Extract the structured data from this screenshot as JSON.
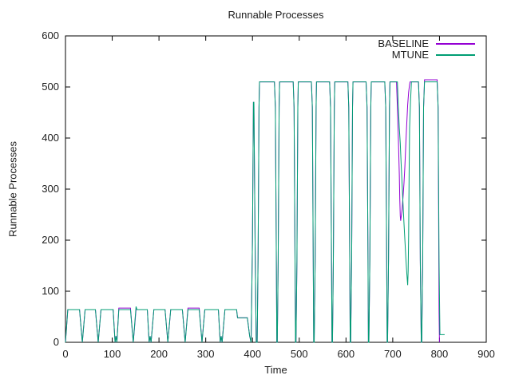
{
  "chart_data": {
    "type": "line",
    "title": "Runnable Processes",
    "xlabel": "Time",
    "ylabel": "Runnable Processes",
    "xlim": [
      0,
      900
    ],
    "ylim": [
      0,
      600
    ],
    "xticks": [
      0,
      100,
      200,
      300,
      400,
      500,
      600,
      700,
      800,
      900
    ],
    "yticks": [
      0,
      100,
      200,
      300,
      400,
      500,
      600
    ],
    "grid": false,
    "legend_position": "top-right-inside",
    "background_color": "#ffffff",
    "border_color": "#000000",
    "text_color": "#1c1c1c",
    "series": [
      {
        "name": "BASELINE",
        "color": "#9400d3",
        "points": [
          [
            0,
            0
          ],
          [
            5,
            64
          ],
          [
            30,
            64
          ],
          [
            36,
            0
          ],
          [
            42,
            64
          ],
          [
            64,
            64
          ],
          [
            70,
            0
          ],
          [
            76,
            64
          ],
          [
            102,
            64
          ],
          [
            106,
            0
          ],
          [
            108,
            12
          ],
          [
            110,
            0
          ],
          [
            114,
            67
          ],
          [
            139,
            67
          ],
          [
            145,
            0
          ],
          [
            151,
            64
          ],
          [
            175,
            64
          ],
          [
            179,
            0
          ],
          [
            181,
            12
          ],
          [
            183,
            0
          ],
          [
            189,
            64
          ],
          [
            213,
            64
          ],
          [
            219,
            0
          ],
          [
            225,
            64
          ],
          [
            250,
            64
          ],
          [
            256,
            0
          ],
          [
            262,
            67
          ],
          [
            286,
            67
          ],
          [
            292,
            0
          ],
          [
            298,
            64
          ],
          [
            327,
            64
          ],
          [
            331,
            0
          ],
          [
            333,
            12
          ],
          [
            335,
            0
          ],
          [
            341,
            64
          ],
          [
            366,
            64
          ],
          [
            368,
            48
          ],
          [
            389,
            48
          ],
          [
            394,
            12
          ],
          [
            397,
            0
          ],
          [
            400,
            200
          ],
          [
            402,
            470
          ],
          [
            403,
            470
          ],
          [
            406,
            160
          ],
          [
            408,
            0
          ],
          [
            410,
            0
          ],
          [
            412,
            160
          ],
          [
            414,
            460
          ],
          [
            415,
            510
          ],
          [
            447,
            510
          ],
          [
            449,
            460
          ],
          [
            451,
            160
          ],
          [
            452,
            0
          ],
          [
            453,
            0
          ],
          [
            455,
            160
          ],
          [
            457,
            460
          ],
          [
            458,
            510
          ],
          [
            487,
            510
          ],
          [
            489,
            460
          ],
          [
            491,
            160
          ],
          [
            492,
            0
          ],
          [
            493,
            0
          ],
          [
            495,
            160
          ],
          [
            497,
            460
          ],
          [
            498,
            510
          ],
          [
            526,
            510
          ],
          [
            528,
            460
          ],
          [
            530,
            160
          ],
          [
            531,
            0
          ],
          [
            532,
            0
          ],
          [
            534,
            160
          ],
          [
            536,
            460
          ],
          [
            537,
            510
          ],
          [
            565,
            510
          ],
          [
            567,
            460
          ],
          [
            569,
            160
          ],
          [
            570,
            0
          ],
          [
            571,
            0
          ],
          [
            573,
            160
          ],
          [
            575,
            460
          ],
          [
            576,
            510
          ],
          [
            604,
            510
          ],
          [
            606,
            460
          ],
          [
            608,
            160
          ],
          [
            609,
            0
          ],
          [
            610,
            0
          ],
          [
            612,
            160
          ],
          [
            614,
            460
          ],
          [
            615,
            510
          ],
          [
            643,
            510
          ],
          [
            645,
            460
          ],
          [
            647,
            160
          ],
          [
            648,
            0
          ],
          [
            649,
            0
          ],
          [
            651,
            160
          ],
          [
            653,
            460
          ],
          [
            654,
            510
          ],
          [
            683,
            510
          ],
          [
            685,
            460
          ],
          [
            687,
            160
          ],
          [
            688,
            0
          ],
          [
            689,
            0
          ],
          [
            691,
            160
          ],
          [
            693,
            460
          ],
          [
            694,
            510
          ],
          [
            708,
            510
          ],
          [
            710,
            460
          ],
          [
            712,
            400
          ],
          [
            714,
            330
          ],
          [
            715,
            280
          ],
          [
            716,
            248
          ],
          [
            717,
            238
          ],
          [
            718,
            245
          ],
          [
            720,
            260
          ],
          [
            722,
            285
          ],
          [
            724,
            310
          ],
          [
            726,
            345
          ],
          [
            728,
            390
          ],
          [
            730,
            430
          ],
          [
            732,
            465
          ],
          [
            734,
            490
          ],
          [
            736,
            505
          ],
          [
            737,
            510
          ],
          [
            755,
            510
          ],
          [
            757,
            460
          ],
          [
            759,
            160
          ],
          [
            761,
            0
          ],
          [
            762,
            0
          ],
          [
            764,
            160
          ],
          [
            766,
            460
          ],
          [
            768,
            514
          ],
          [
            795,
            514
          ],
          [
            797,
            460
          ],
          [
            799,
            60
          ],
          [
            800,
            0
          ]
        ]
      },
      {
        "name": "MTUNE",
        "color": "#009e73",
        "points": [
          [
            0,
            0
          ],
          [
            5,
            64
          ],
          [
            30,
            64
          ],
          [
            36,
            0
          ],
          [
            42,
            64
          ],
          [
            64,
            64
          ],
          [
            70,
            0
          ],
          [
            76,
            64
          ],
          [
            102,
            64
          ],
          [
            106,
            0
          ],
          [
            108,
            12
          ],
          [
            110,
            0
          ],
          [
            114,
            64
          ],
          [
            139,
            64
          ],
          [
            145,
            0
          ],
          [
            151,
            70
          ],
          [
            153,
            64
          ],
          [
            175,
            64
          ],
          [
            179,
            0
          ],
          [
            181,
            12
          ],
          [
            183,
            0
          ],
          [
            189,
            64
          ],
          [
            213,
            64
          ],
          [
            219,
            0
          ],
          [
            225,
            64
          ],
          [
            250,
            64
          ],
          [
            256,
            0
          ],
          [
            262,
            64
          ],
          [
            286,
            64
          ],
          [
            292,
            0
          ],
          [
            298,
            64
          ],
          [
            327,
            64
          ],
          [
            331,
            0
          ],
          [
            333,
            12
          ],
          [
            335,
            0
          ],
          [
            341,
            64
          ],
          [
            366,
            64
          ],
          [
            368,
            48
          ],
          [
            389,
            48
          ],
          [
            394,
            12
          ],
          [
            397,
            0
          ],
          [
            400,
            200
          ],
          [
            402,
            470
          ],
          [
            403,
            470
          ],
          [
            406,
            160
          ],
          [
            408,
            0
          ],
          [
            410,
            0
          ],
          [
            412,
            160
          ],
          [
            414,
            460
          ],
          [
            415,
            510
          ],
          [
            447,
            510
          ],
          [
            449,
            460
          ],
          [
            451,
            160
          ],
          [
            452,
            0
          ],
          [
            453,
            0
          ],
          [
            455,
            160
          ],
          [
            457,
            460
          ],
          [
            458,
            510
          ],
          [
            487,
            510
          ],
          [
            489,
            460
          ],
          [
            491,
            160
          ],
          [
            492,
            0
          ],
          [
            493,
            0
          ],
          [
            495,
            160
          ],
          [
            497,
            460
          ],
          [
            498,
            510
          ],
          [
            526,
            510
          ],
          [
            528,
            460
          ],
          [
            530,
            160
          ],
          [
            531,
            0
          ],
          [
            532,
            0
          ],
          [
            534,
            160
          ],
          [
            536,
            460
          ],
          [
            537,
            510
          ],
          [
            565,
            510
          ],
          [
            567,
            460
          ],
          [
            569,
            160
          ],
          [
            570,
            0
          ],
          [
            571,
            0
          ],
          [
            573,
            160
          ],
          [
            575,
            460
          ],
          [
            576,
            510
          ],
          [
            604,
            510
          ],
          [
            606,
            460
          ],
          [
            608,
            160
          ],
          [
            609,
            0
          ],
          [
            610,
            0
          ],
          [
            612,
            160
          ],
          [
            614,
            460
          ],
          [
            615,
            510
          ],
          [
            643,
            510
          ],
          [
            645,
            460
          ],
          [
            647,
            160
          ],
          [
            648,
            0
          ],
          [
            649,
            0
          ],
          [
            651,
            160
          ],
          [
            653,
            460
          ],
          [
            654,
            510
          ],
          [
            683,
            510
          ],
          [
            685,
            460
          ],
          [
            687,
            160
          ],
          [
            688,
            0
          ],
          [
            689,
            0
          ],
          [
            691,
            160
          ],
          [
            693,
            460
          ],
          [
            694,
            510
          ],
          [
            710,
            510
          ],
          [
            712,
            460
          ],
          [
            714,
            420
          ],
          [
            716,
            390
          ],
          [
            718,
            350
          ],
          [
            720,
            310
          ],
          [
            722,
            270
          ],
          [
            724,
            235
          ],
          [
            726,
            200
          ],
          [
            728,
            165
          ],
          [
            730,
            135
          ],
          [
            732,
            112
          ],
          [
            733,
            140
          ],
          [
            734,
            210
          ],
          [
            735,
            330
          ],
          [
            736,
            420
          ],
          [
            738,
            470
          ],
          [
            740,
            510
          ],
          [
            755,
            510
          ],
          [
            757,
            460
          ],
          [
            759,
            160
          ],
          [
            761,
            0
          ],
          [
            762,
            0
          ],
          [
            764,
            160
          ],
          [
            766,
            460
          ],
          [
            768,
            510
          ],
          [
            795,
            510
          ],
          [
            797,
            460
          ],
          [
            799,
            160
          ],
          [
            801,
            15
          ],
          [
            811,
            15
          ]
        ]
      }
    ]
  }
}
